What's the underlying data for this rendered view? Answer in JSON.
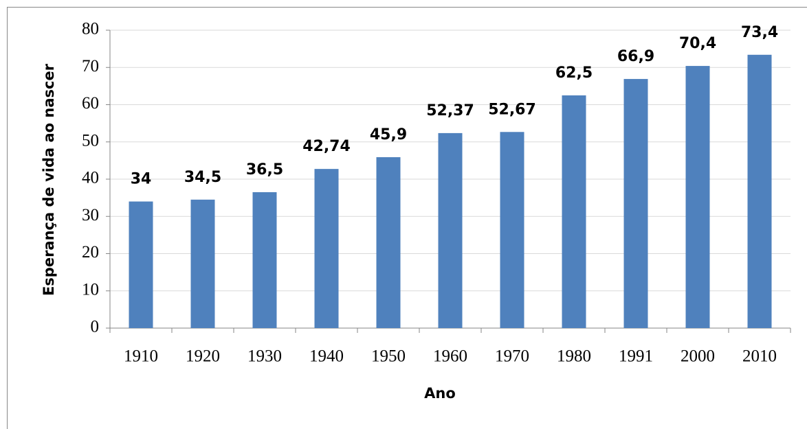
{
  "chart_data": {
    "type": "bar",
    "x_label": "Ano",
    "y_label": "Esperança de vida ao nascer",
    "categories": [
      "1910",
      "1920",
      "1930",
      "1940",
      "1950",
      "1960",
      "1970",
      "1980",
      "1991",
      "2000",
      "2010"
    ],
    "values": [
      34,
      34.5,
      36.5,
      42.74,
      45.9,
      52.37,
      52.67,
      62.5,
      66.9,
      70.4,
      73.4
    ],
    "value_labels": [
      "34",
      "34,5",
      "36,5",
      "42,74",
      "45,9",
      "52,37",
      "52,67",
      "62,5",
      "66,9",
      "70,4",
      "73,4"
    ],
    "color": "#4f81bd",
    "ylim": [
      0,
      80
    ],
    "yticks": [
      0,
      10,
      20,
      30,
      40,
      50,
      60,
      70,
      80
    ],
    "grid": true
  }
}
